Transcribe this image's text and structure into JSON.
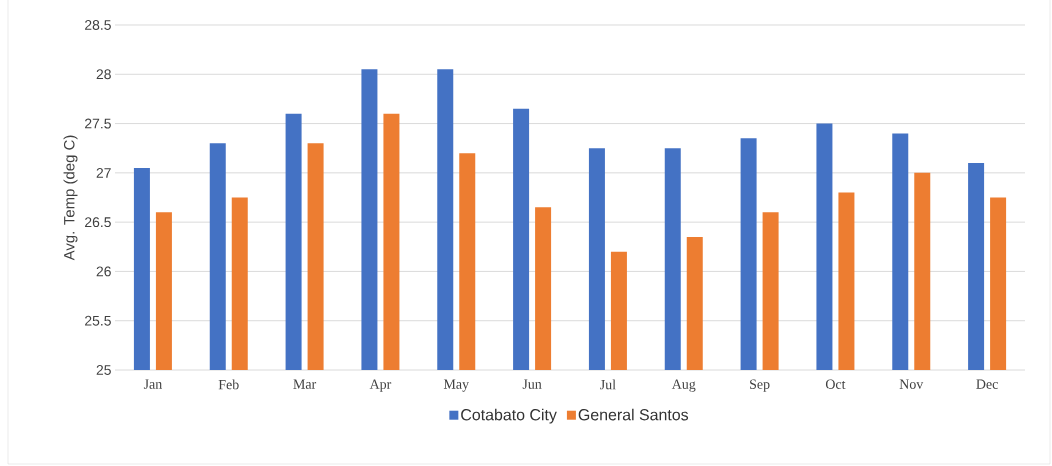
{
  "chart_data": {
    "type": "bar",
    "ylabel": "Avg. Temp (deg C)",
    "categories": [
      "Jan",
      "Feb",
      "Mar",
      "Apr",
      "May",
      "Jun",
      "Jul",
      "Aug",
      "Sep",
      "Oct",
      "Nov",
      "Dec"
    ],
    "series": [
      {
        "name": "Cotabato City",
        "color": "#4472c4",
        "values": [
          27.05,
          27.3,
          27.6,
          28.05,
          28.05,
          27.65,
          27.25,
          27.25,
          27.35,
          27.5,
          27.4,
          27.1
        ]
      },
      {
        "name": "General Santos",
        "color": "#ed7d31",
        "values": [
          26.6,
          26.75,
          27.3,
          27.6,
          27.2,
          26.65,
          26.2,
          26.35,
          26.6,
          26.8,
          27.0,
          26.75
        ]
      }
    ],
    "ylim": [
      25,
      28.5
    ],
    "yticks": [
      25,
      25.5,
      26,
      26.5,
      27,
      27.5,
      28,
      28.5
    ],
    "grid": "y",
    "legend": "bottom"
  }
}
